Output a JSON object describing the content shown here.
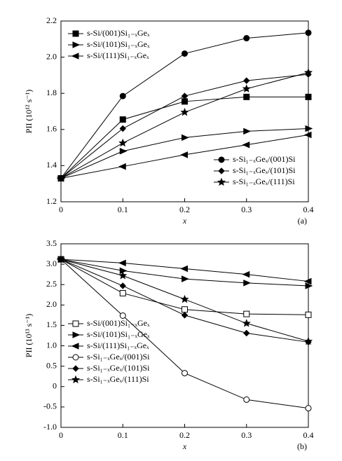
{
  "chart_data": [
    {
      "type": "line",
      "annotation": "(a)",
      "x_label": "x",
      "y_label": "PII (10¹² s⁻¹)",
      "x": [
        0,
        0.1,
        0.2,
        0.3,
        0.4
      ],
      "xlim": [
        0,
        0.4
      ],
      "xticks": [
        0,
        0.1,
        0.2,
        0.3,
        0.4
      ],
      "ylim": [
        1.2,
        2.2
      ],
      "yticks": [
        1.2,
        1.4,
        1.6,
        1.8,
        {
          "value": 2,
          "label": "2.0"
        },
        2.2
      ],
      "legend": [
        "upper left",
        "lower right"
      ],
      "series": [
        {
          "name": "s-Si/(001)Si₁₋ₓGeₓ",
          "color": "#000000",
          "marker": "square",
          "filled": true,
          "values": [
            1.33,
            1.655,
            1.755,
            1.78,
            1.78
          ]
        },
        {
          "name": "s-Si/(101)Si₁₋ₓGeₓ",
          "color": "#000000",
          "marker": "triangle-right",
          "filled": true,
          "values": [
            1.33,
            1.48,
            1.555,
            1.59,
            1.605
          ]
        },
        {
          "name": "s-Si/(111)Si₁₋ₓGeₓ",
          "color": "#000000",
          "marker": "triangle-left",
          "filled": true,
          "values": [
            1.33,
            1.395,
            1.46,
            1.515,
            1.57
          ]
        },
        {
          "name": "s-Si₁₋ₓGeₓ/(001)Si",
          "color": "#000000",
          "marker": "circle",
          "filled": true,
          "values": [
            1.33,
            1.785,
            2.02,
            2.105,
            2.135
          ]
        },
        {
          "name": "s-Si₁₋ₓGeₓ/(101)Si",
          "color": "#000000",
          "marker": "diamond",
          "filled": true,
          "values": [
            1.33,
            1.605,
            1.785,
            1.87,
            1.905
          ]
        },
        {
          "name": "s-Si₁₋ₓGeₓ/(111)Si",
          "color": "#000000",
          "marker": "star",
          "filled": true,
          "values": [
            1.33,
            1.525,
            1.695,
            1.825,
            1.915
          ]
        }
      ]
    },
    {
      "type": "line",
      "annotation": "(b)",
      "x_label": "x",
      "y_label": "PII (10¹³ s⁻¹)",
      "x": [
        0,
        0.1,
        0.2,
        0.3,
        0.4
      ],
      "xlim": [
        0,
        0.4
      ],
      "xticks": [
        0,
        0.1,
        0.2,
        0.3,
        0.4
      ],
      "ylim": [
        -1,
        3.5
      ],
      "yticks": [
        {
          "value": -1,
          "label": "-1.0"
        },
        -0.5,
        0,
        0.5,
        {
          "value": 1,
          "label": "1.0"
        },
        1.5,
        {
          "value": 2,
          "label": "2.0"
        },
        2.5,
        {
          "value": 3,
          "label": "3.0"
        },
        3.5
      ],
      "legend": [
        "lower left"
      ],
      "series": [
        {
          "name": "s-Si/(001)Si₁₋ₓGeₓ",
          "color": "#000000",
          "marker": "square",
          "filled": false,
          "values": [
            3.12,
            2.29,
            1.89,
            1.78,
            1.76
          ]
        },
        {
          "name": "s-Si/(101)Si₁₋ₓGeₓ",
          "color": "#000000",
          "marker": "triangle-right",
          "filled": true,
          "values": [
            3.12,
            2.84,
            2.64,
            2.54,
            2.47
          ]
        },
        {
          "name": "s-Si/(111)Si₁₋ₓGeₓ",
          "color": "#000000",
          "marker": "triangle-left",
          "filled": true,
          "values": [
            3.12,
            3.03,
            2.89,
            2.75,
            2.58
          ]
        },
        {
          "name": "s-Si₁₋ₓGeₓ/(001)Si",
          "color": "#000000",
          "marker": "circle",
          "filled": false,
          "values": [
            3.12,
            1.74,
            0.33,
            -0.32,
            -0.53
          ]
        },
        {
          "name": "s-Si₁₋ₓGeₓ/(101)Si",
          "color": "#000000",
          "marker": "diamond",
          "filled": true,
          "values": [
            3.12,
            2.47,
            1.75,
            1.31,
            1.09
          ]
        },
        {
          "name": "s-Si₁₋ₓGeₓ/(111)Si",
          "color": "#000000",
          "marker": "star",
          "filled": true,
          "values": [
            3.12,
            2.72,
            2.14,
            1.55,
            1.11
          ]
        }
      ]
    }
  ]
}
